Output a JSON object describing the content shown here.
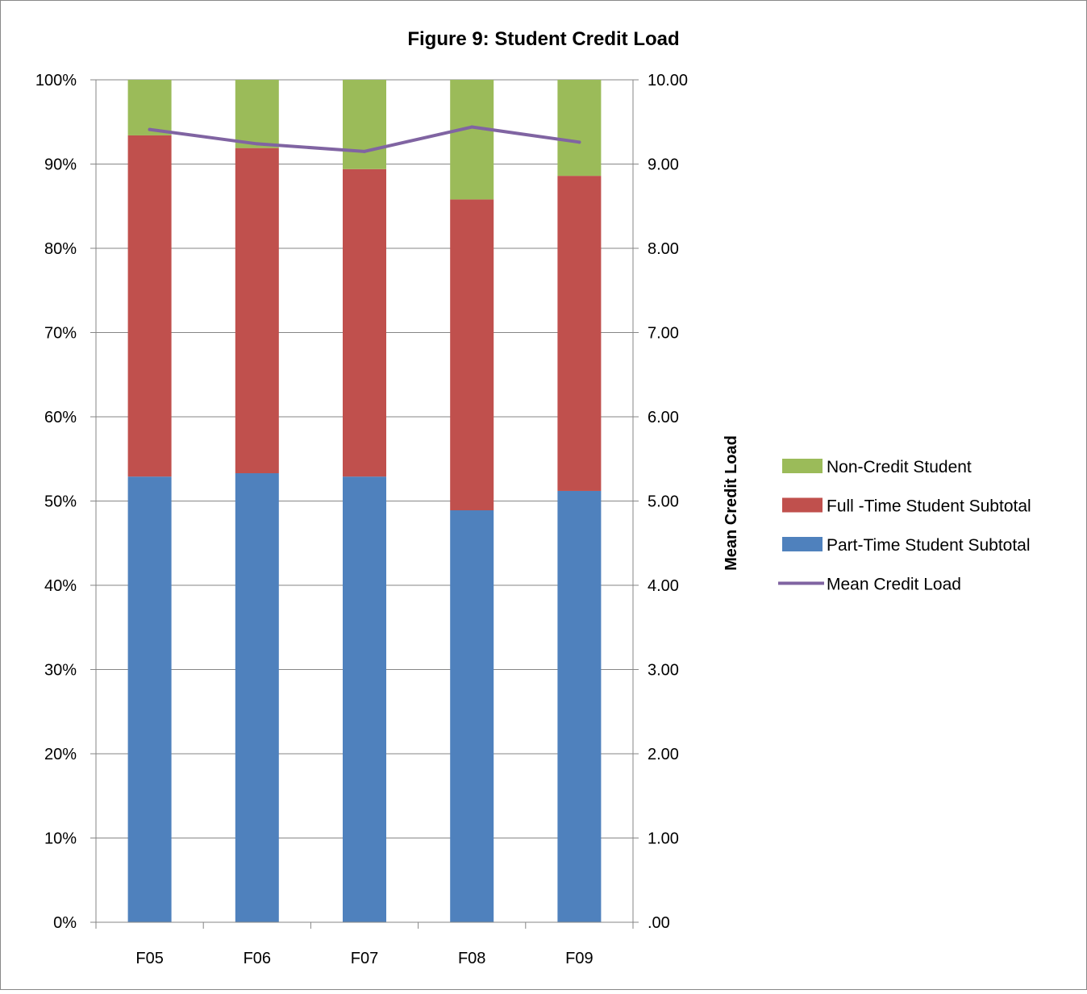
{
  "chart_data": {
    "type": "bar",
    "stacked": true,
    "title": "Figure 9: Student Credit Load",
    "categories": [
      "F05",
      "F06",
      "F07",
      "F08",
      "F09"
    ],
    "series": [
      {
        "name": "Part-Time Student Subtotal",
        "color": "#4F81BD",
        "values": [
          52.9,
          53.3,
          52.9,
          48.9,
          51.2
        ]
      },
      {
        "name": "Full -Time Student Subtotal",
        "color": "#C0504D",
        "values": [
          40.5,
          38.6,
          36.5,
          36.9,
          37.4
        ]
      },
      {
        "name": "Non-Credit Student",
        "color": "#9BBB59",
        "values": [
          6.6,
          8.1,
          10.6,
          14.2,
          11.4
        ]
      }
    ],
    "line_series": {
      "name": "Mean Credit Load",
      "color": "#8064A2",
      "axis": "secondary",
      "values": [
        9.41,
        9.24,
        9.15,
        9.44,
        9.26
      ]
    },
    "y_axis": {
      "ylim": [
        0,
        100
      ],
      "tick_labels": [
        "0%",
        "10%",
        "20%",
        "30%",
        "40%",
        "50%",
        "60%",
        "70%",
        "80%",
        "90%",
        "100%"
      ]
    },
    "y2_axis": {
      "label": "Mean Credit Load",
      "ylim": [
        0,
        10
      ],
      "tick_labels": [
        ".00",
        "1.00",
        "2.00",
        "3.00",
        "4.00",
        "5.00",
        "6.00",
        "7.00",
        "8.00",
        "9.00",
        "10.00"
      ]
    },
    "grid": true,
    "legend": {
      "placement": "right",
      "order": [
        "Non-Credit Student",
        "Full -Time Student Subtotal",
        "Part-Time Student Subtotal",
        "Mean Credit Load"
      ]
    }
  }
}
